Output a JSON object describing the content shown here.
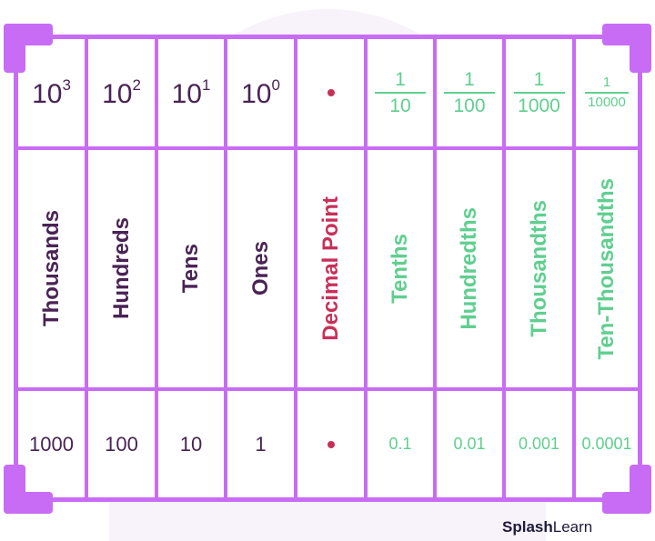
{
  "powers": [
    {
      "base": "10",
      "exp": "3"
    },
    {
      "base": "10",
      "exp": "2"
    },
    {
      "base": "10",
      "exp": "1"
    },
    {
      "base": "10",
      "exp": "0"
    }
  ],
  "fractions": [
    {
      "num": "1",
      "den": "10"
    },
    {
      "num": "1",
      "den": "100"
    },
    {
      "num": "1",
      "den": "1000"
    },
    {
      "num": "1",
      "den": "10000"
    }
  ],
  "names": [
    "Thousands",
    "Hundreds",
    "Tens",
    "Ones",
    "Decimal Point",
    "Tenths",
    "Hundredths",
    "Thousandths",
    "Ten-Thousandths"
  ],
  "values": [
    "1000",
    "100",
    "10",
    "1",
    "0.1",
    "0.01",
    "0.001",
    "0.0001"
  ],
  "logo": {
    "bold": "Splash",
    "light": "Learn"
  },
  "colors": {
    "border": "#c86cf5",
    "whole": "#4a2356",
    "decimal_point": "#c8305a",
    "fraction": "#5fcf8f"
  }
}
